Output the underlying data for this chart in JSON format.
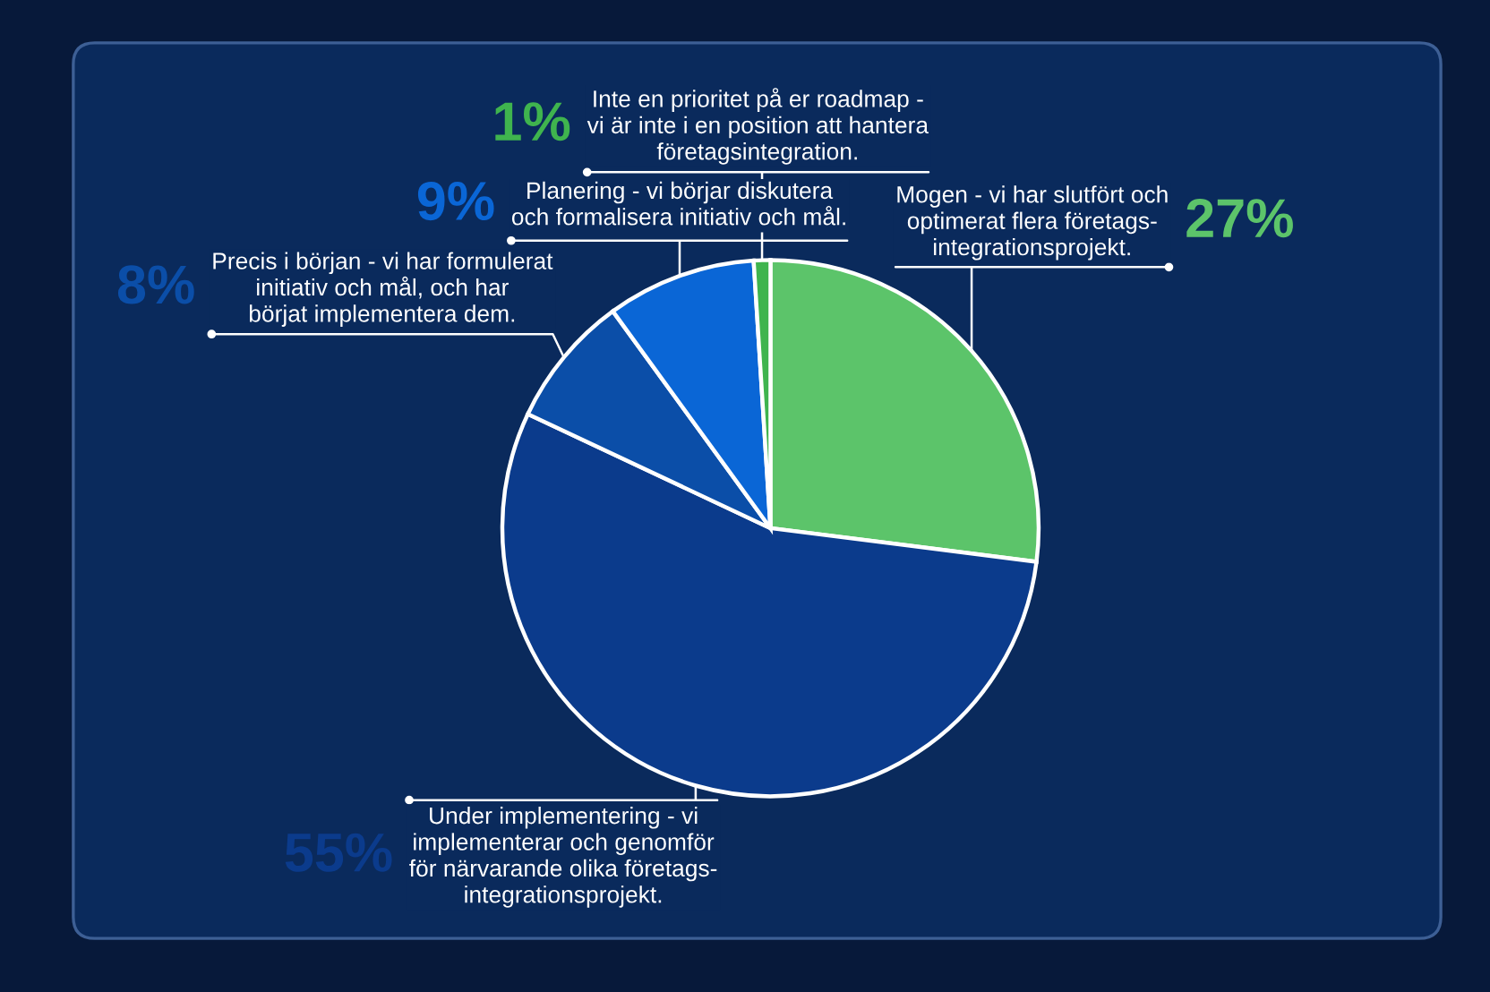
{
  "chart_data": {
    "type": "pie",
    "categories": [
      "Mogen - vi har slutfört och\noptimerat flera företags-\nintegrationsprojekt.",
      "Under implementering - vi\nimplementerar och genomför\nför närvarande olika företags-\nintegrationsprojekt.",
      "Precis i början - vi har formulerat\ninitiativ och mål, och har\nbörjat implementera dem.",
      "Planering - vi börjar diskutera\noch formalisera initiativ och mål.",
      "Inte en prioritet på er roadmap -\nvi är inte i en position att hantera\nföretagsintegration."
    ],
    "values": [
      27,
      55,
      8,
      9,
      1
    ],
    "colors": [
      "#5cc46a",
      "#0b3b8c",
      "#0b4ea8",
      "#0a66d6",
      "#3fb44e"
    ],
    "value_labels": [
      "27%",
      "55%",
      "8%",
      "9%",
      "1%"
    ],
    "legend": false
  }
}
